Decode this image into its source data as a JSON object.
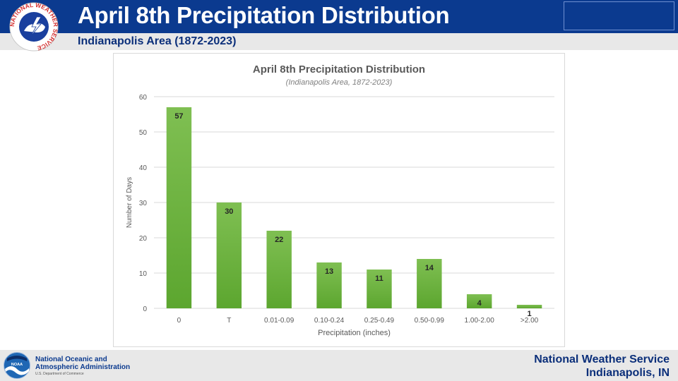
{
  "header": {
    "title": "April 8th Precipitation Distribution",
    "subtitle": "Indianapolis Area (1872-2023)"
  },
  "logos": {
    "nws_ring_text": "NATIONAL WEATHER SERVICE",
    "noaa_badge": "NOAA"
  },
  "footer": {
    "agency_line1": "National Oceanic and",
    "agency_line2": "Atmospheric Administration",
    "agency_sub": "U.S. Department of Commerce",
    "office_line1": "National Weather Service",
    "office_line2": "Indianapolis, IN"
  },
  "colors": {
    "header_blue": "#0b3a8f",
    "bar_green": "#5ca62f",
    "bar_green_light": "#7fbf52"
  },
  "chart_data": {
    "type": "bar",
    "title": "April 8th Precipitation Distribution",
    "subtitle": "(Indianapolis Area, 1872-2023)",
    "xlabel": "Precipitation (inches)",
    "ylabel": "Number of Days",
    "categories": [
      "0",
      "T",
      "0.01-0.09",
      "0.10-0.24",
      "0.25-0.49",
      "0.50-0.99",
      "1.00-2.00",
      ">2.00"
    ],
    "values": [
      57,
      30,
      22,
      13,
      11,
      14,
      4,
      1
    ],
    "ylim": [
      0,
      60
    ],
    "yticks": [
      0,
      10,
      20,
      30,
      40,
      50,
      60
    ],
    "grid": true,
    "legend": "none",
    "data_labels": true
  }
}
